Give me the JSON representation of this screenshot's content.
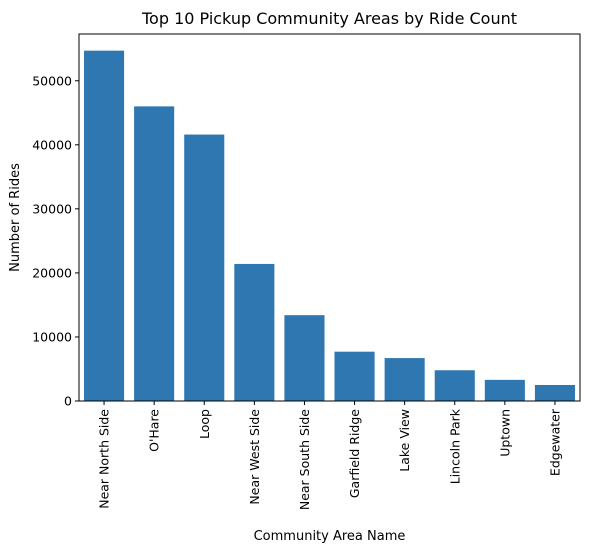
{
  "chart_data": {
    "type": "bar",
    "title": "Top 10 Pickup Community Areas by Ride Count",
    "xlabel": "Community Area Name",
    "ylabel": "Number of Rides",
    "categories": [
      "Near North Side",
      "O'Hare",
      "Loop",
      "Near West Side",
      "Near South Side",
      "Garfield Ridge",
      "Lake View",
      "Lincoln Park",
      "Uptown",
      "Edgewater"
    ],
    "values": [
      54700,
      46000,
      41600,
      21400,
      13400,
      7700,
      6700,
      4800,
      3300,
      2500
    ],
    "ylim": [
      0,
      57300
    ],
    "yticks": [
      0,
      10000,
      20000,
      30000,
      40000,
      50000
    ],
    "ytick_labels": [
      "0",
      "10000",
      "20000",
      "30000",
      "40000",
      "50000"
    ],
    "bar_color": "#2f77b1",
    "grid": false,
    "legend": "none"
  }
}
